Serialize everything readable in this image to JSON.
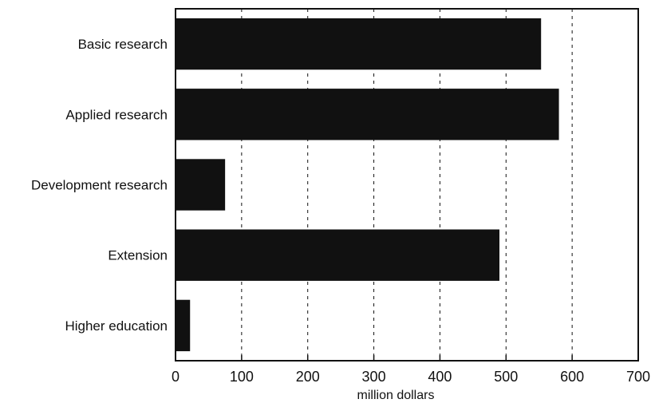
{
  "chart_data": {
    "type": "bar",
    "orientation": "horizontal",
    "categories": [
      "Basic research",
      "Applied research",
      "Development research",
      "Extension",
      "Higher education"
    ],
    "values": [
      553,
      580,
      75,
      490,
      22
    ],
    "xlabel": "million dollars",
    "ylabel": "",
    "xlim": [
      0,
      700
    ],
    "x_ticks": [
      "0",
      "100",
      "200",
      "300",
      "400",
      "500",
      "600",
      "700"
    ],
    "grid": "vertical dashed",
    "bar_color": "#111111"
  }
}
